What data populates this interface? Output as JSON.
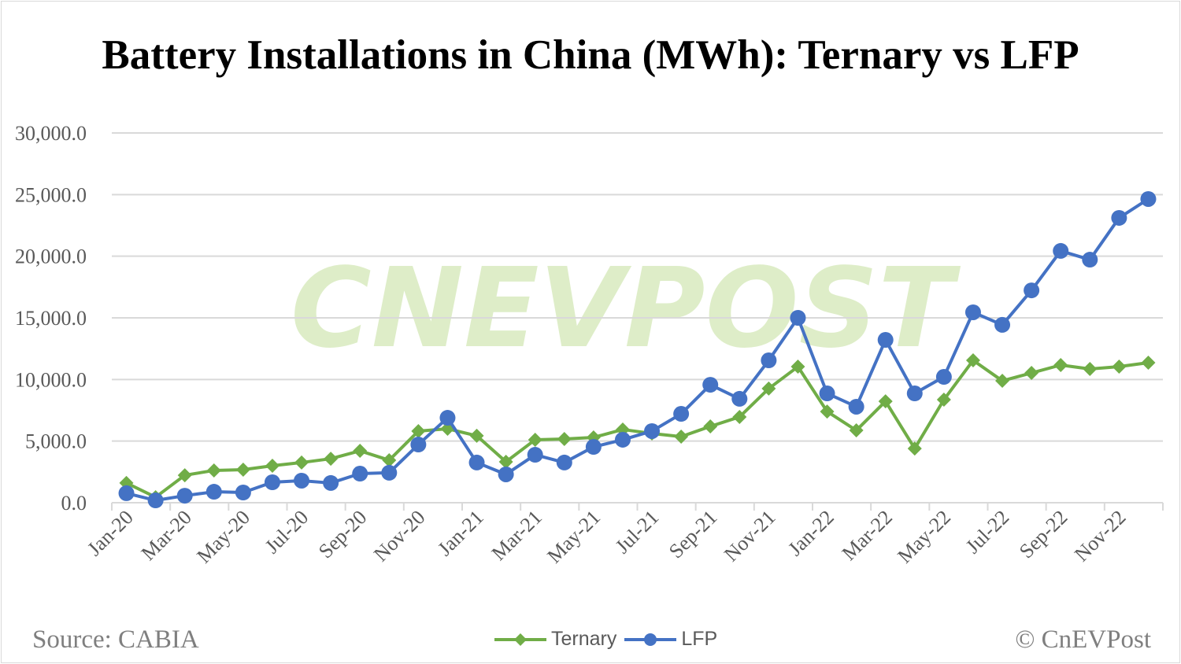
{
  "title": "Battery Installations in China (MWh): Ternary vs LFP",
  "source": "Source: CABIA",
  "copyright": "© CnEVPost",
  "watermark": "CNEVPOST",
  "chart_data": {
    "type": "line",
    "title": "Battery Installations in China (MWh): Ternary vs LFP",
    "xlabel": "",
    "ylabel": "",
    "ylim": [
      0,
      30000
    ],
    "yticks": [
      "0.0",
      "5,000.0",
      "10,000.0",
      "15,000.0",
      "20,000.0",
      "25,000.0",
      "30,000.0"
    ],
    "grid": true,
    "legend": "bottom",
    "x": [
      "Jan-20",
      "Feb-20",
      "Mar-20",
      "Apr-20",
      "May-20",
      "Jun-20",
      "Jul-20",
      "Aug-20",
      "Sep-20",
      "Oct-20",
      "Nov-20",
      "Dec-20",
      "Jan-21",
      "Feb-21",
      "Mar-21",
      "Apr-21",
      "May-21",
      "Jun-21",
      "Jul-21",
      "Aug-21",
      "Sep-21",
      "Oct-21",
      "Nov-21",
      "Dec-21",
      "Jan-22",
      "Feb-22",
      "Mar-22",
      "Apr-22",
      "May-22",
      "Jun-22",
      "Jul-22",
      "Aug-22",
      "Sep-22",
      "Oct-22",
      "Nov-22",
      "Dec-22"
    ],
    "xtick_labels": [
      "Jan-20",
      "Mar-20",
      "May-20",
      "Jul-20",
      "Sep-20",
      "Nov-20",
      "Jan-21",
      "Mar-21",
      "May-21",
      "Jul-21",
      "Sep-21",
      "Nov-21",
      "Jan-22",
      "Mar-22",
      "May-22",
      "Jul-22",
      "Sep-22",
      "Nov-22"
    ],
    "series": [
      {
        "name": "Ternary",
        "color": "#70ad47",
        "marker": "diamond",
        "values": [
          1600,
          450,
          2230,
          2620,
          2680,
          3000,
          3260,
          3570,
          4210,
          3450,
          5810,
          6000,
          5430,
          3320,
          5110,
          5170,
          5300,
          5940,
          5620,
          5360,
          6190,
          6960,
          9260,
          11040,
          7400,
          5870,
          8230,
          4400,
          8360,
          11550,
          9890,
          10530,
          11170,
          10850,
          11040,
          11360
        ]
      },
      {
        "name": "LFP",
        "color": "#4472c4",
        "marker": "circle",
        "values": [
          770,
          190,
          570,
          890,
          830,
          1660,
          1790,
          1600,
          2360,
          2430,
          4720,
          6890,
          3260,
          2300,
          3890,
          3260,
          4530,
          5110,
          5810,
          7210,
          9570,
          8430,
          11550,
          15000,
          8870,
          7790,
          13210,
          8870,
          10210,
          15450,
          14430,
          17230,
          20430,
          19720,
          23110,
          24640
        ]
      }
    ]
  }
}
